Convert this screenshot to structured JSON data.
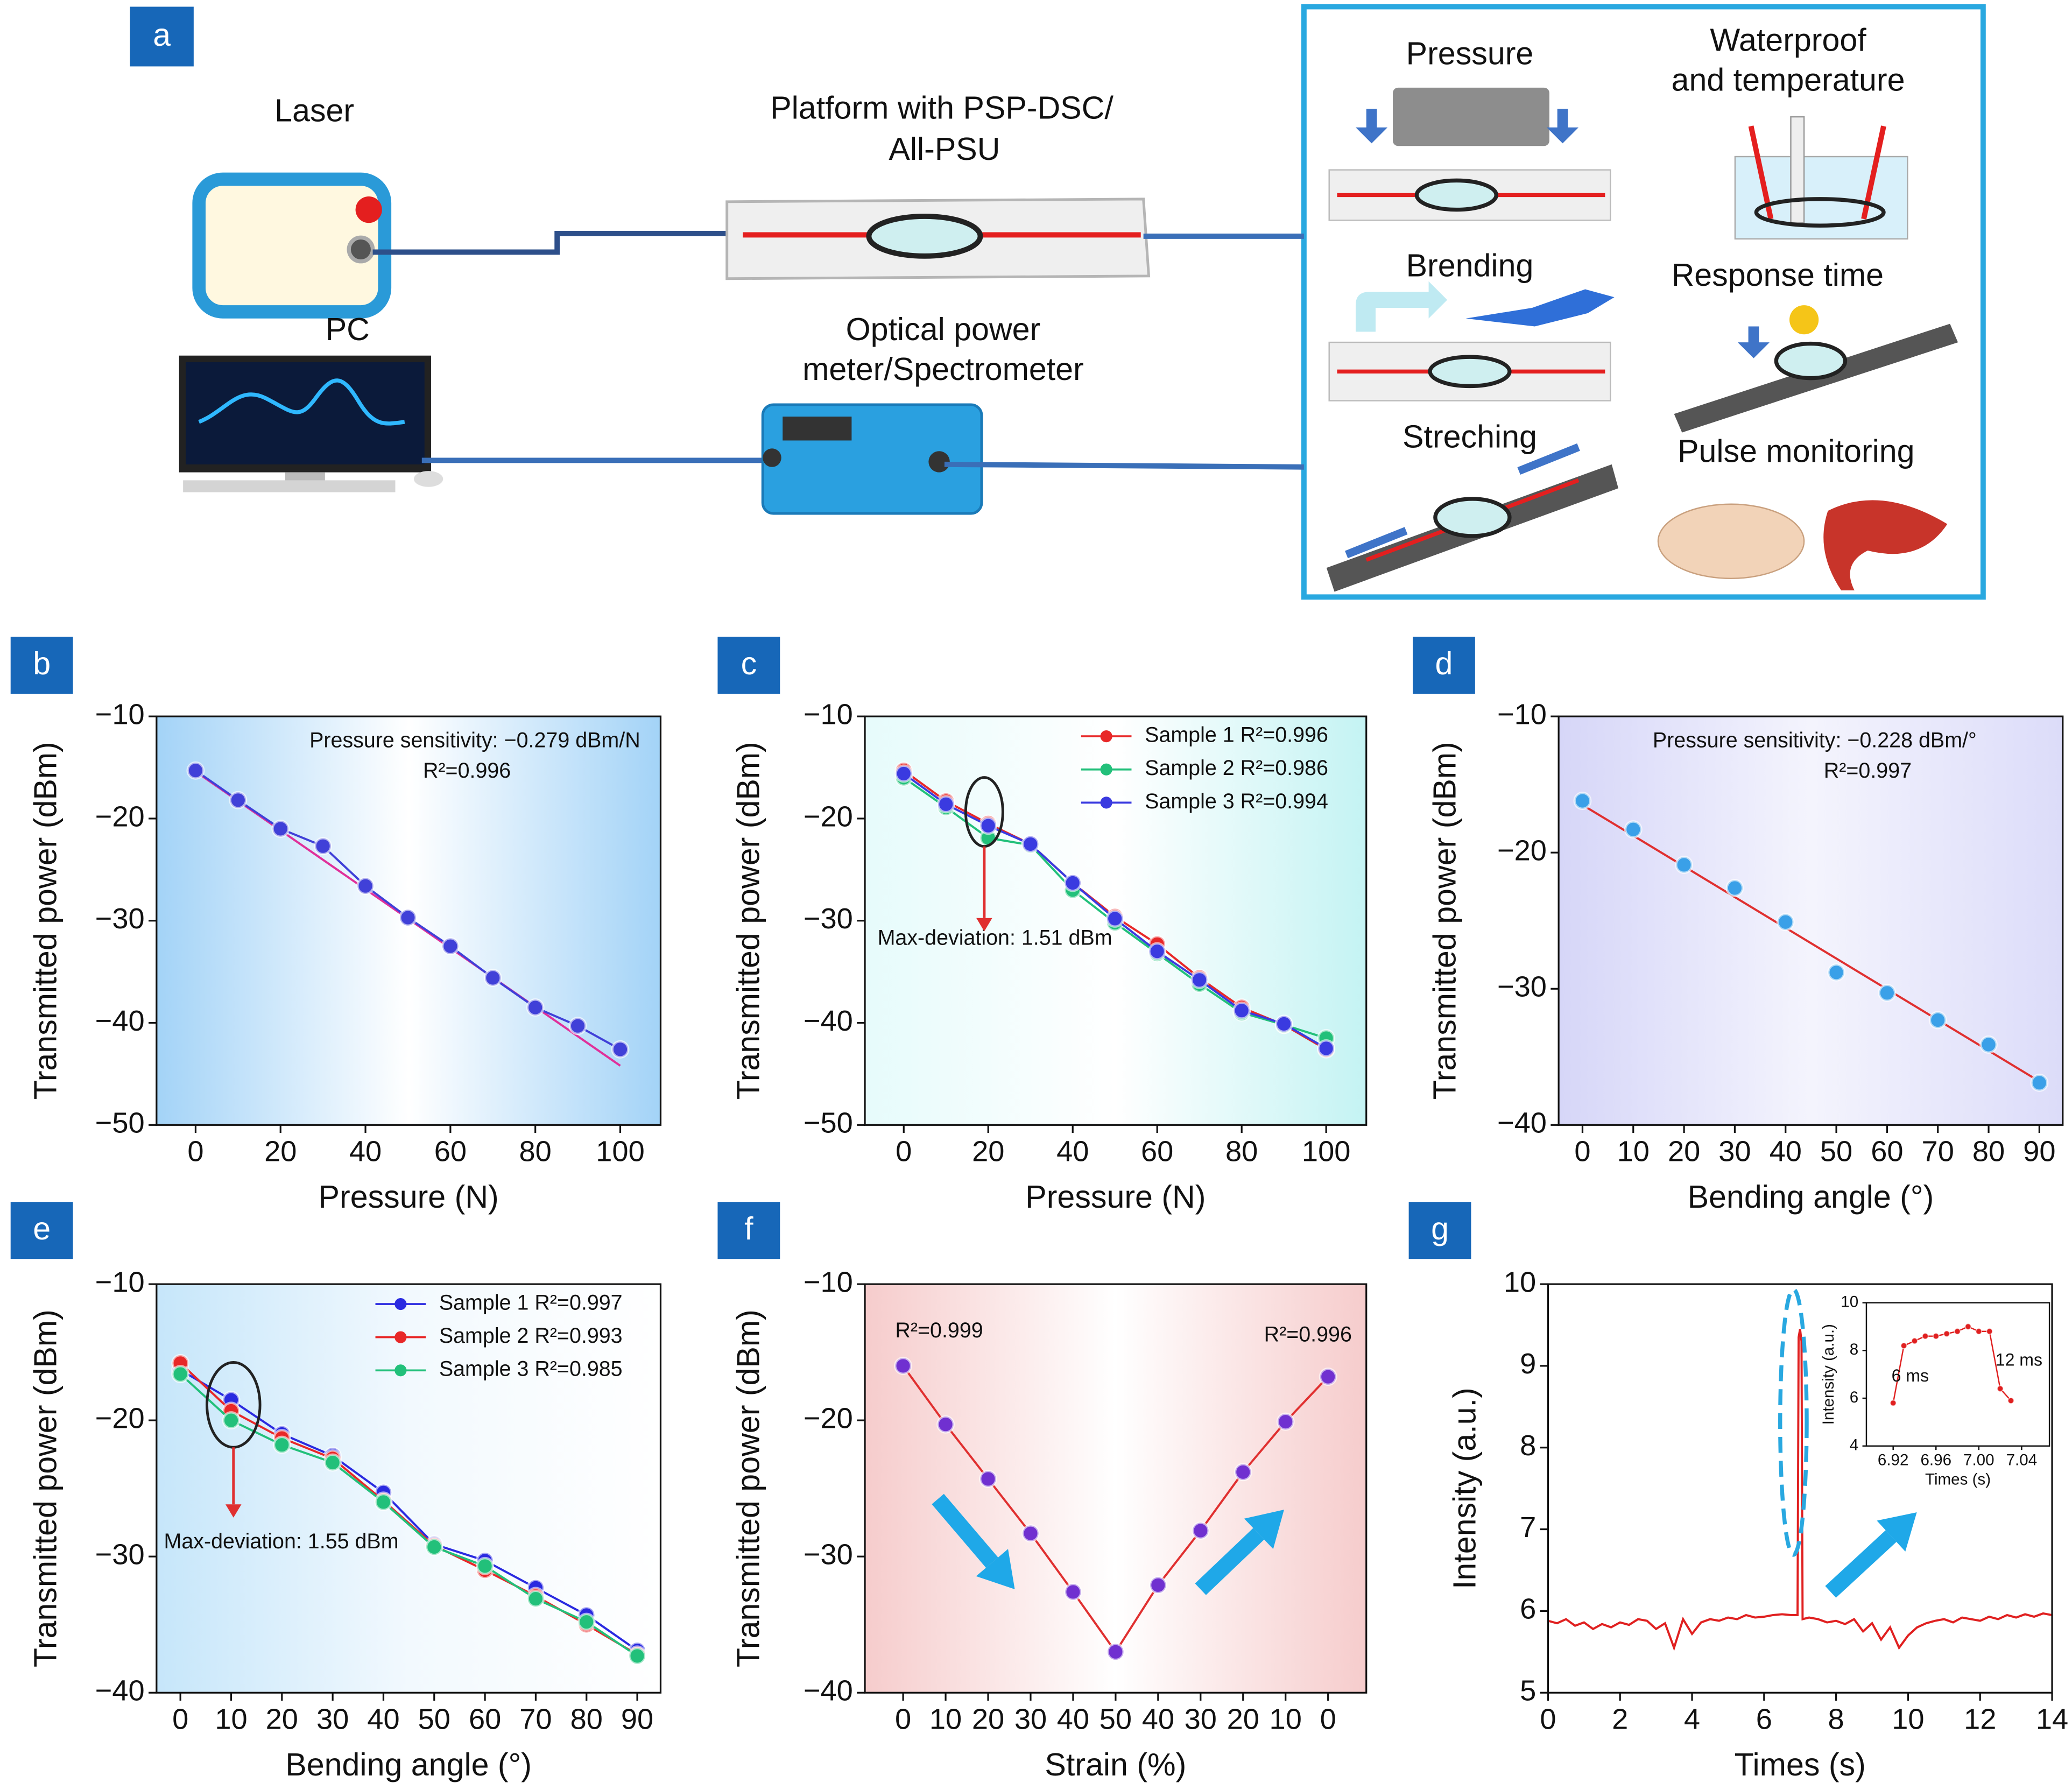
{
  "diagram": {
    "label": "a",
    "laser": "Laser",
    "pc": "PC",
    "platform": [
      "Platform with PSP-DSC/",
      "All-PSU"
    ],
    "meter": [
      "Optical power",
      "meter/Spectrometer"
    ],
    "tests": {
      "pressure": "Pressure",
      "waterproof": [
        "Waterproof",
        "and temperature"
      ],
      "bending": "Brending",
      "response": "Response time",
      "stretching": "Streching",
      "pulse": "Pulse monitoring"
    }
  },
  "chart_data": [
    {
      "type": "line",
      "label": "b",
      "xlabel": "Pressure (N)",
      "ylabel": "Transmitted power (dBm)",
      "background": [
        "#a3d3f7",
        "#ffffff",
        "#a3d3f7"
      ],
      "xlim": [
        -9.2,
        109.5
      ],
      "xticks": [
        0,
        20,
        40,
        60,
        80,
        100
      ],
      "ylim": [
        -50,
        -10
      ],
      "yticks": [
        {
          "value": -10,
          "label": "−10"
        },
        {
          "value": -20,
          "label": "−20"
        },
        {
          "value": -30,
          "label": "−30"
        },
        {
          "value": -40,
          "label": "−40"
        },
        {
          "value": -50,
          "label": "−50"
        }
      ],
      "x": [
        0,
        10,
        20,
        30,
        40,
        50,
        60,
        70,
        80,
        90,
        100
      ],
      "series": [
        {
          "color": "#4040d8",
          "values": [
            -15.3,
            -18.2,
            -21.0,
            -22.7,
            -26.6,
            -29.7,
            -32.5,
            -35.6,
            -38.5,
            -40.3,
            -42.6
          ]
        }
      ],
      "fit": {
        "color": "#e0309a",
        "x": [
          0,
          100
        ],
        "values": [
          -15.4,
          -44.2
        ]
      },
      "annotations": [
        "Pressure sensitivity: −0.279 dBm/N",
        "R²=0.996"
      ]
    },
    {
      "type": "line",
      "label": "c",
      "xlabel": "Pressure (N)",
      "ylabel": "Transmitted power (dBm)",
      "background": [
        "#e6fbfb",
        "#ffffff",
        "#c4f3f3"
      ],
      "xlim": [
        -9.2,
        109.5
      ],
      "xticks": [
        0,
        20,
        40,
        60,
        80,
        100
      ],
      "ylim": [
        -50,
        -10
      ],
      "yticks": [
        {
          "value": -10,
          "label": "−10"
        },
        {
          "value": -20,
          "label": "−20"
        },
        {
          "value": -30,
          "label": "−30"
        },
        {
          "value": -40,
          "label": "−40"
        },
        {
          "value": -50,
          "label": "−50"
        }
      ],
      "x": [
        0,
        10,
        20,
        30,
        40,
        50,
        60,
        70,
        80,
        90,
        100
      ],
      "series": [
        {
          "name": "Sample 1 R²=0.996",
          "color": "#e82828",
          "values": [
            -15.3,
            -18.3,
            -20.5,
            -22.5,
            -26.3,
            -29.6,
            -32.3,
            -35.6,
            -38.5,
            -40.2,
            -42.6
          ]
        },
        {
          "name": "Sample 2 R²=0.986",
          "color": "#22c07a",
          "values": [
            -16.0,
            -18.9,
            -21.9,
            -22.6,
            -27.0,
            -30.2,
            -33.2,
            -36.2,
            -39.0,
            -40.2,
            -41.5
          ]
        },
        {
          "name": "Sample 3 R²=0.994",
          "color": "#3a3ae0",
          "values": [
            -15.6,
            -18.6,
            -20.7,
            -22.5,
            -26.3,
            -29.8,
            -33.0,
            -35.8,
            -38.8,
            -40.1,
            -42.5
          ]
        }
      ],
      "legend": "upper right",
      "annotations": [
        "Max-deviation: 1.51 dBm"
      ]
    },
    {
      "type": "line",
      "label": "d",
      "xlabel": "Bending angle (°)",
      "ylabel": "Transmitted power (dBm)",
      "background": [
        "#d6d6f8",
        "#f4f4fd",
        "#dcdcf9"
      ],
      "xlim": [
        -4.7,
        94.6
      ],
      "xticks": [
        0,
        10,
        20,
        30,
        40,
        50,
        60,
        70,
        80,
        90
      ],
      "ylim": [
        -40,
        -10
      ],
      "yticks": [
        {
          "value": -10,
          "label": "−10"
        },
        {
          "value": -20,
          "label": "−20"
        },
        {
          "value": -30,
          "label": "−30"
        },
        {
          "value": -40,
          "label": "−40"
        }
      ],
      "x": [
        0,
        10,
        20,
        30,
        40,
        50,
        60,
        70,
        80,
        90
      ],
      "series": [
        {
          "color": "#3aa0e8",
          "line": false,
          "values": [
            -16.2,
            -18.3,
            -20.9,
            -22.6,
            -25.1,
            -28.8,
            -30.3,
            -32.3,
            -34.1,
            -36.9
          ]
        }
      ],
      "fit": {
        "color": "#e03030",
        "x": [
          0,
          90
        ],
        "values": [
          -16.5,
          -36.8
        ]
      },
      "annotations": [
        "Pressure sensitivity: −0.228 dBm/°",
        "R²=0.997"
      ]
    },
    {
      "type": "line",
      "label": "e",
      "xlabel": "Bending angle (°)",
      "ylabel": "Transmitted power (dBm)",
      "background": [
        "#c6e6fa",
        "#f2f9fe",
        "#ffffff"
      ],
      "xlim": [
        -4.7,
        94.6
      ],
      "xticks": [
        0,
        10,
        20,
        30,
        40,
        50,
        60,
        70,
        80,
        90
      ],
      "ylim": [
        -40,
        -10
      ],
      "yticks": [
        {
          "value": -10,
          "label": "−10"
        },
        {
          "value": -20,
          "label": "−20"
        },
        {
          "value": -30,
          "label": "−30"
        },
        {
          "value": -40,
          "label": "−40"
        }
      ],
      "x": [
        0,
        10,
        20,
        30,
        40,
        50,
        60,
        70,
        80,
        90
      ],
      "series": [
        {
          "name": "Sample 1 R²=0.997",
          "color": "#2a2ae0",
          "values": [
            -16.3,
            -18.5,
            -21.0,
            -22.6,
            -25.3,
            -29.1,
            -30.3,
            -32.3,
            -34.3,
            -36.9
          ]
        },
        {
          "name": "Sample 2 R²=0.993",
          "color": "#e82828",
          "values": [
            -15.8,
            -19.3,
            -21.3,
            -22.8,
            -25.9,
            -29.2,
            -31.0,
            -32.9,
            -35.0,
            -37.2
          ]
        },
        {
          "name": "Sample 3 R²=0.985",
          "color": "#22c07a",
          "values": [
            -16.6,
            -20.0,
            -21.8,
            -23.1,
            -26.0,
            -29.3,
            -30.7,
            -33.1,
            -34.8,
            -37.3
          ]
        }
      ],
      "legend": "upper right",
      "annotations": [
        "Max-deviation: 1.55 dBm"
      ]
    },
    {
      "type": "line",
      "label": "f",
      "xlabel": "Strain (%)",
      "ylabel": "Transmitted power (dBm)",
      "background": [
        "#f6cccc",
        "#ffffff",
        "#f6cccc"
      ],
      "categories": [
        "0",
        "10",
        "20",
        "30",
        "40",
        "50",
        "40",
        "30",
        "20",
        "10",
        "0"
      ],
      "ylim": [
        -40,
        -10
      ],
      "yticks": [
        {
          "value": -10,
          "label": "−10"
        },
        {
          "value": -20,
          "label": "−20"
        },
        {
          "value": -30,
          "label": "−30"
        },
        {
          "value": -40,
          "label": "−40"
        }
      ],
      "series": [
        {
          "color": "#7030d0",
          "line_color": "#e03030",
          "values": [
            -16.0,
            -20.3,
            -24.3,
            -28.3,
            -32.6,
            -37.0,
            -32.1,
            -28.1,
            -23.8,
            -20.1,
            -16.8
          ]
        }
      ],
      "annotations": [
        "R²=0.999",
        "R²=0.996"
      ]
    },
    {
      "type": "line",
      "label": "g",
      "xlabel": "Times (s)",
      "ylabel": "Intensity (a.u.)",
      "xlim": [
        0,
        14
      ],
      "xticks": [
        0,
        2,
        4,
        6,
        8,
        10,
        12,
        14
      ],
      "ylim": [
        5,
        10
      ],
      "yticks": [
        5,
        6,
        7,
        8,
        9,
        10
      ],
      "markers": false,
      "x": [
        0,
        0.25,
        0.5,
        0.75,
        1,
        1.25,
        1.5,
        1.75,
        2,
        2.25,
        2.5,
        2.75,
        3,
        3.25,
        3.5,
        3.75,
        4,
        4.25,
        4.5,
        4.75,
        5,
        5.25,
        5.5,
        5.75,
        6,
        6.25,
        6.5,
        6.75,
        6.93,
        6.96,
        7,
        7.04,
        7.07,
        7.25,
        7.5,
        7.75,
        8,
        8.25,
        8.5,
        8.75,
        9,
        9.25,
        9.5,
        9.75,
        10,
        10.25,
        10.5,
        10.75,
        11,
        11.25,
        11.5,
        11.75,
        12,
        12.25,
        12.5,
        12.75,
        13,
        13.25,
        13.5,
        13.75,
        14
      ],
      "series": [
        {
          "color": "#e02020",
          "values": [
            5.88,
            5.85,
            5.9,
            5.82,
            5.86,
            5.78,
            5.84,
            5.8,
            5.86,
            5.83,
            5.9,
            5.88,
            5.78,
            5.85,
            5.55,
            5.9,
            5.72,
            5.86,
            5.9,
            5.88,
            5.92,
            5.9,
            5.95,
            5.92,
            5.93,
            5.95,
            5.96,
            5.95,
            5.95,
            9.35,
            9.45,
            9.3,
            5.9,
            5.92,
            5.9,
            5.86,
            5.88,
            5.84,
            5.9,
            5.75,
            5.85,
            5.65,
            5.8,
            5.55,
            5.7,
            5.8,
            5.85,
            5.88,
            5.9,
            5.86,
            5.92,
            5.9,
            5.88,
            5.93,
            5.9,
            5.95,
            5.92,
            5.96,
            5.93,
            5.97,
            5.95
          ]
        }
      ],
      "inset": {
        "xlabel": "Times (s)",
        "ylabel": "Intensity (a.u.)",
        "xlim": [
          6.895,
          7.066
        ],
        "xticks": [
          6.92,
          6.96,
          {
            "value": 7,
            "label": "7.00"
          },
          7.04
        ],
        "ylim": [
          4,
          10
        ],
        "yticks": [
          4,
          6,
          8,
          10
        ],
        "x": [
          6.92,
          6.93,
          6.94,
          6.95,
          6.96,
          6.97,
          6.98,
          6.99,
          7.0,
          7.01,
          7.02,
          7.03
        ],
        "series": [
          {
            "color": "#e02020",
            "values": [
              5.8,
              8.2,
              8.4,
              8.6,
              8.6,
              8.7,
              8.8,
              9.0,
              8.8,
              8.8,
              6.4,
              5.9
            ]
          }
        ],
        "annotations": [
          "6 ms",
          "12 ms"
        ]
      }
    }
  ]
}
